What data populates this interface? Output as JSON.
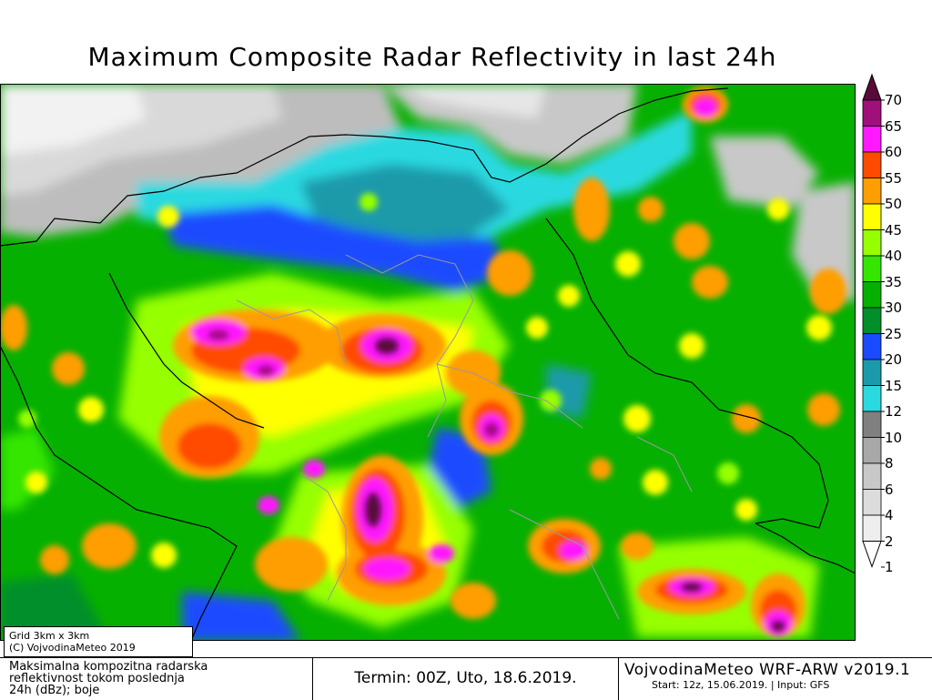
{
  "title": "Maximum Composite Radar Reflectivity in last 24h",
  "colorbar": {
    "levels": [
      "70",
      "65",
      "60",
      "55",
      "50",
      "45",
      "40",
      "35",
      "30",
      "25",
      "20",
      "15",
      "12",
      "10",
      "8",
      "6",
      "4",
      "2",
      "1"
    ],
    "colors": [
      "#5a0a3a",
      "#a0107a",
      "#ff19ff",
      "#ff4b00",
      "#ff9e00",
      "#ffff00",
      "#96ff00",
      "#34e600",
      "#06b000",
      "#008f2a",
      "#1a4bff",
      "#1a9aaa",
      "#2ad9e0",
      "#808080",
      "#a8a8a8",
      "#c8c8c8",
      "#dcdcdc",
      "#eeeeee",
      "#ffffff"
    ]
  },
  "grid_info": {
    "line1": "Grid 3km x 3km",
    "line2": "(C) VojvodinaMeteo 2019"
  },
  "footer": {
    "description": [
      "Maksimalna kompozitna radarska",
      "reflektivnost tokom poslednja",
      "24h (dBz); boje"
    ],
    "termin": "Termin: 00Z, Uto, 18.6.2019.",
    "model_name": "VojvodinaMeteo WRF-ARW v2019.1",
    "model_info": "Start: 12z, 15.06.2019. | Input: GFS"
  }
}
